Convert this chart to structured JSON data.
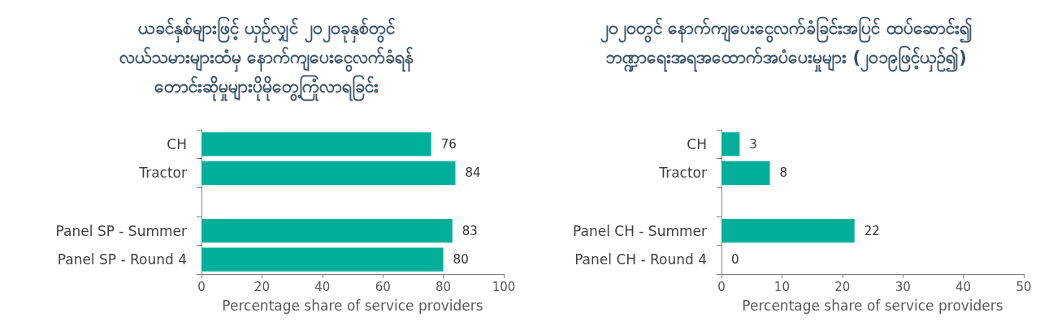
{
  "chart_data": [
    {
      "type": "bar",
      "orientation": "horizontal",
      "title": "ယခင်နှစ်များဖြင့် ယှဉ်လျှင် ၂၀၂၀ခုနှစ်တွင်\nလယ်သမားများထံမှ နောက်ကျပေးငွေလက်ခံရန်\nတောင်းဆိုမှုများပိုမိုတွေ့ကြုံလာရခြင်း",
      "xlabel": "Percentage share of service providers",
      "categories": [
        "CH",
        "Tractor",
        null,
        "Panel SP - Summer",
        "Panel SP - Round 4"
      ],
      "values": [
        76,
        84,
        null,
        83,
        80
      ],
      "color": "#00ae9a",
      "xlim": [
        0,
        100
      ],
      "xticks": [
        0,
        20,
        40,
        60,
        80,
        100
      ],
      "data_labels": true
    },
    {
      "type": "bar",
      "orientation": "horizontal",
      "title": "၂၀၂၀တွင် နောက်ကျပေးငွေလက်ခံခြင်းအပြင် ထပ်ဆောင်း၍\nဘဏ္ဍာရေးအရအထောက်အပံပေးမှုများ (၂၀၁၉ဖြင့်ယှဉ်၍)",
      "xlabel": "Percentage share of service providers",
      "categories": [
        "CH",
        "Tractor",
        null,
        "Panel CH - Summer",
        "Panel CH - Round 4"
      ],
      "values": [
        3,
        8,
        null,
        22,
        0
      ],
      "color": "#00ae9a",
      "xlim": [
        0,
        50
      ],
      "xticks": [
        0,
        10,
        20,
        30,
        40,
        50
      ],
      "data_labels": true
    }
  ]
}
